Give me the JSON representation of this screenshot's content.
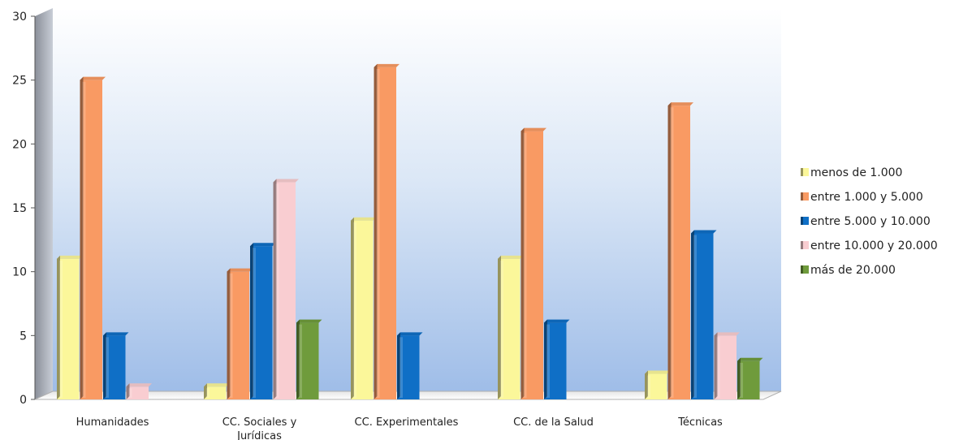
{
  "chart_data": {
    "type": "bar",
    "title": "",
    "xlabel": "",
    "ylabel": "",
    "ylim": [
      0,
      30
    ],
    "yticks": [
      0,
      5,
      10,
      15,
      20,
      25,
      30
    ],
    "grid": false,
    "legend_position": "right",
    "categories": [
      [
        "Humanidades"
      ],
      [
        "CC. Sociales y",
        "Jurídicas"
      ],
      [
        "CC. Experimentales"
      ],
      [
        "CC. de la Salud"
      ],
      [
        "Técnicas"
      ]
    ],
    "series": [
      {
        "name": "menos de 1.000",
        "color": "#fbf79a",
        "values": [
          11,
          1,
          14,
          11,
          2
        ]
      },
      {
        "name": "entre 1.000 y 5.000",
        "color": "#f99a63",
        "values": [
          25,
          10,
          26,
          21,
          23
        ]
      },
      {
        "name": "entre 5.000 y 10.000",
        "color": "#0f6fc6",
        "values": [
          5,
          12,
          5,
          6,
          13
        ]
      },
      {
        "name": "entre 10.000 y 20.000",
        "color": "#f9cdd1",
        "values": [
          1,
          17,
          0,
          0,
          5
        ]
      },
      {
        "name": "más de 20.000",
        "color": "#6f9b3c",
        "values": [
          0,
          6,
          0,
          0,
          3
        ]
      }
    ]
  }
}
